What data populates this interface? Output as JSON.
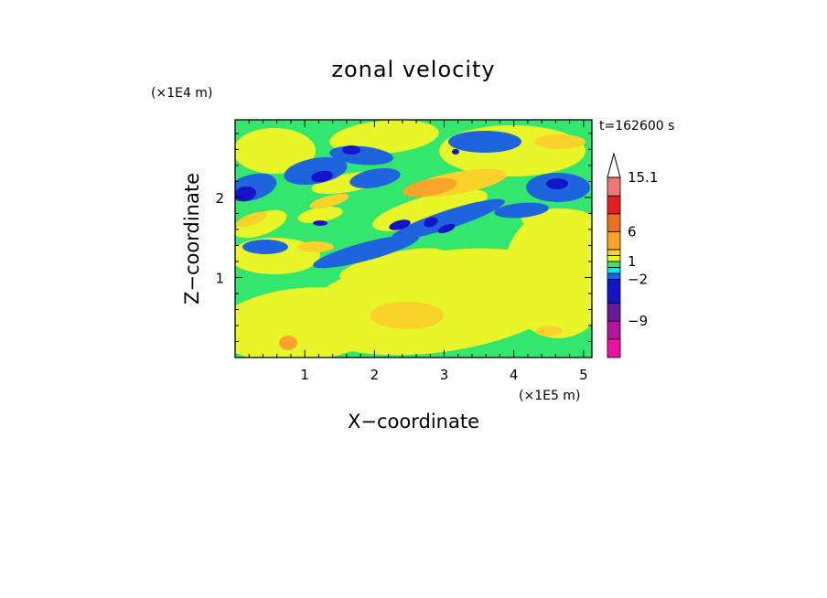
{
  "chart_data": {
    "type": "heatmap",
    "title": "zonal velocity",
    "xlabel": "X−coordinate",
    "ylabel": "Z−coordinate",
    "x_units": "(×1E5 m)",
    "y_units": "(×1E4 m)",
    "time_label": "t=162600 s",
    "xlim": [
      0,
      5.12
    ],
    "ylim": [
      0,
      2.97
    ],
    "x_ticks": [
      1,
      2,
      3,
      4,
      5
    ],
    "y_ticks": [
      1,
      2
    ],
    "x_tick_labels": [
      "1",
      "2",
      "3",
      "4",
      "5"
    ],
    "y_tick_labels": [
      "1",
      "2"
    ],
    "colorbar": {
      "levels": [
        -15.1,
        -12,
        -9,
        -6,
        -2,
        -1,
        0,
        1,
        2,
        3,
        6,
        9,
        12,
        15.1
      ],
      "colors": [
        "#f010a8",
        "#b4149a",
        "#6a1a9a",
        "#1414c8",
        "#1e64dc",
        "#00e6f0",
        "#33e66e",
        "#e8f528",
        "#fad22a",
        "#f9a32a",
        "#ee6f1e",
        "#e81e1e",
        "#f27878",
        "#f7c2c2"
      ],
      "labels": [
        "15.1",
        "6",
        "1",
        "−2",
        "−9"
      ],
      "label_values": [
        15.1,
        6,
        1,
        -2,
        -9
      ],
      "extend": "max"
    },
    "field": {
      "description": "contour-filled zonal velocity field (values in m/s) over X in units of 1E5 m and Z in units of 1E4 m",
      "features": [
        {
          "x": 0.18,
          "z": 2.07,
          "value": -9,
          "label": "strong westward core near left top"
        },
        {
          "x": 1.25,
          "z": 2.25,
          "value": -7,
          "label": "westward core"
        },
        {
          "x": 1.65,
          "z": 2.6,
          "value": -6,
          "label": "westward core upper"
        },
        {
          "x": 2.35,
          "z": 1.65,
          "value": -7,
          "label": "westward core mid"
        },
        {
          "x": 3.1,
          "z": 2.2,
          "value": 4,
          "label": "eastward core upper"
        },
        {
          "x": 4.7,
          "z": 2.2,
          "value": -6,
          "label": "westward core right"
        },
        {
          "x": 2.5,
          "z": 0.5,
          "value": 3,
          "label": "eastward lower lobe"
        },
        {
          "x": 4.5,
          "z": 2.65,
          "value": 3,
          "label": "eastward upper right"
        }
      ]
    }
  }
}
